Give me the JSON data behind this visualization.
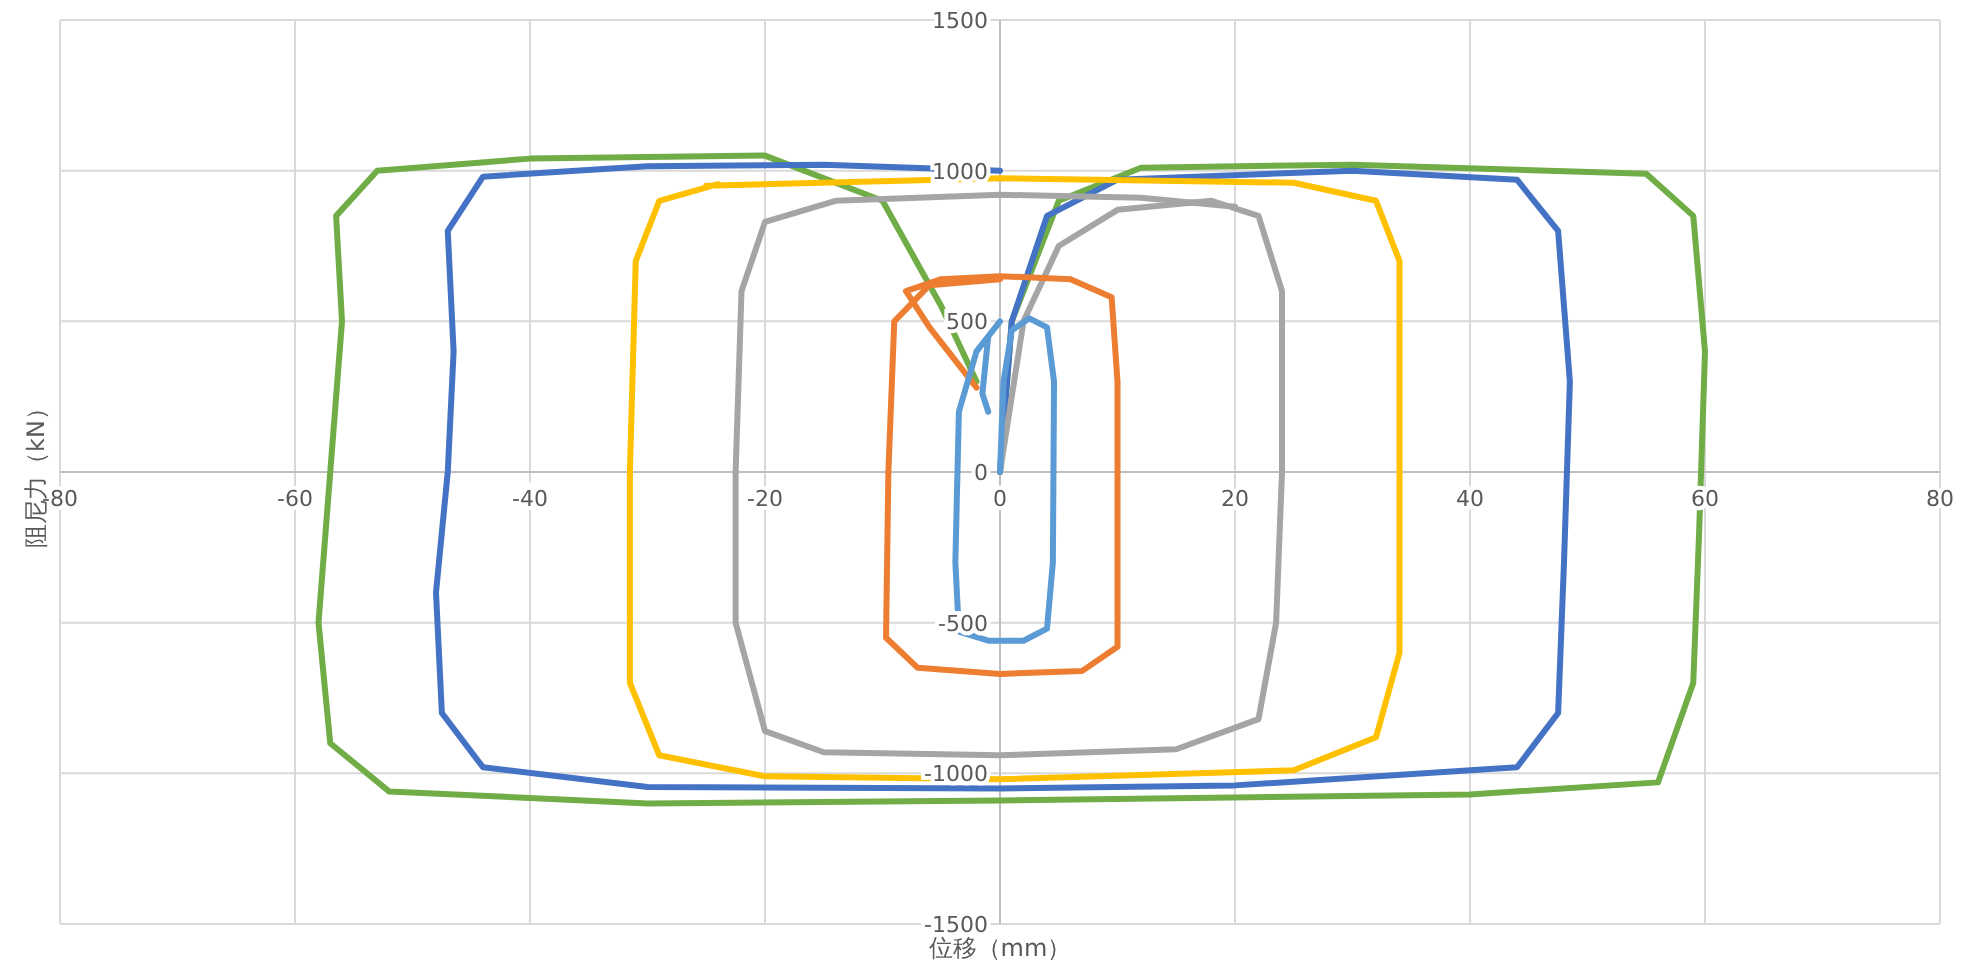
{
  "chart_data": {
    "type": "line",
    "xlabel": "位移（mm）",
    "ylabel": "阻尼力（kN）",
    "xlim": [
      -80,
      80
    ],
    "ylim": [
      -1500,
      1500
    ],
    "xticks": [
      -80,
      -60,
      -40,
      -20,
      0,
      20,
      40,
      60,
      80
    ],
    "yticks": [
      -1500,
      -1000,
      -500,
      0,
      500,
      1000,
      1500
    ],
    "grid": true,
    "marker": "none",
    "line_style": "solid",
    "series": [
      {
        "color": "#70ad47",
        "x": [
          0,
          1,
          5,
          12,
          30,
          55,
          59,
          60,
          59.5,
          59,
          56,
          40,
          0,
          -30,
          -52,
          -57,
          -58,
          -57,
          -56,
          -56.5,
          -53,
          -40,
          -20,
          -10,
          -5,
          -2
        ],
        "values": [
          0,
          500,
          900,
          1010,
          1020,
          990,
          850,
          400,
          -200,
          -700,
          -1030,
          -1070,
          -1090,
          -1100,
          -1060,
          -900,
          -500,
          0,
          500,
          850,
          1000,
          1040,
          1050,
          900,
          550,
          300
        ]
      },
      {
        "color": "#4472c4",
        "x": [
          0,
          1,
          4,
          10,
          30,
          44,
          47.5,
          48.5,
          48,
          47.5,
          44,
          20,
          0,
          -30,
          -44,
          -47.5,
          -48,
          -47,
          -46.5,
          -47,
          -44,
          -30,
          -15,
          0
        ],
        "values": [
          0,
          500,
          850,
          970,
          1000,
          970,
          800,
          300,
          -300,
          -800,
          -980,
          -1040,
          -1050,
          -1045,
          -980,
          -800,
          -400,
          0,
          400,
          800,
          980,
          1015,
          1020,
          1000
        ]
      },
      {
        "color": "#ffc000",
        "x": [
          -25,
          0,
          25,
          32,
          34,
          34,
          34,
          32,
          25,
          0,
          -20,
          -29,
          -31.5,
          -31.5,
          -31,
          -29,
          -24
        ],
        "values": [
          950,
          975,
          960,
          900,
          700,
          0,
          -600,
          -880,
          -990,
          -1020,
          -1010,
          -940,
          -700,
          0,
          700,
          900,
          955
        ]
      },
      {
        "color": "#a5a5a5",
        "x": [
          0,
          2,
          5,
          10,
          18,
          22,
          24,
          24,
          23.5,
          22,
          15,
          0,
          -15,
          -20,
          -22.5,
          -22.5,
          -22,
          -20,
          -14,
          0,
          12,
          20
        ],
        "values": [
          0,
          500,
          750,
          870,
          900,
          850,
          600,
          0,
          -500,
          -820,
          -920,
          -940,
          -930,
          -860,
          -500,
          0,
          600,
          830,
          900,
          920,
          910,
          880
        ]
      },
      {
        "color": "#ed7d31",
        "x": [
          -2,
          -6,
          -8,
          -5,
          0,
          6,
          9.5,
          10,
          10,
          10,
          7,
          0,
          -7,
          -9.7,
          -9.5,
          -9,
          -6,
          0
        ],
        "values": [
          280,
          480,
          600,
          640,
          650,
          640,
          580,
          300,
          -300,
          -580,
          -660,
          -670,
          -650,
          -550,
          0,
          500,
          620,
          640
        ]
      },
      {
        "color": "#5b9bd5",
        "x": [
          0,
          0.3,
          1,
          2.5,
          4,
          4.6,
          4.5,
          4,
          2,
          -1,
          -3.5,
          -3.8,
          -3.5,
          -2,
          0,
          -1,
          -1.5,
          -1
        ],
        "values": [
          0,
          300,
          470,
          510,
          480,
          300,
          -300,
          -520,
          -560,
          -560,
          -530,
          -300,
          200,
          400,
          500,
          450,
          260,
          200
        ]
      }
    ]
  }
}
